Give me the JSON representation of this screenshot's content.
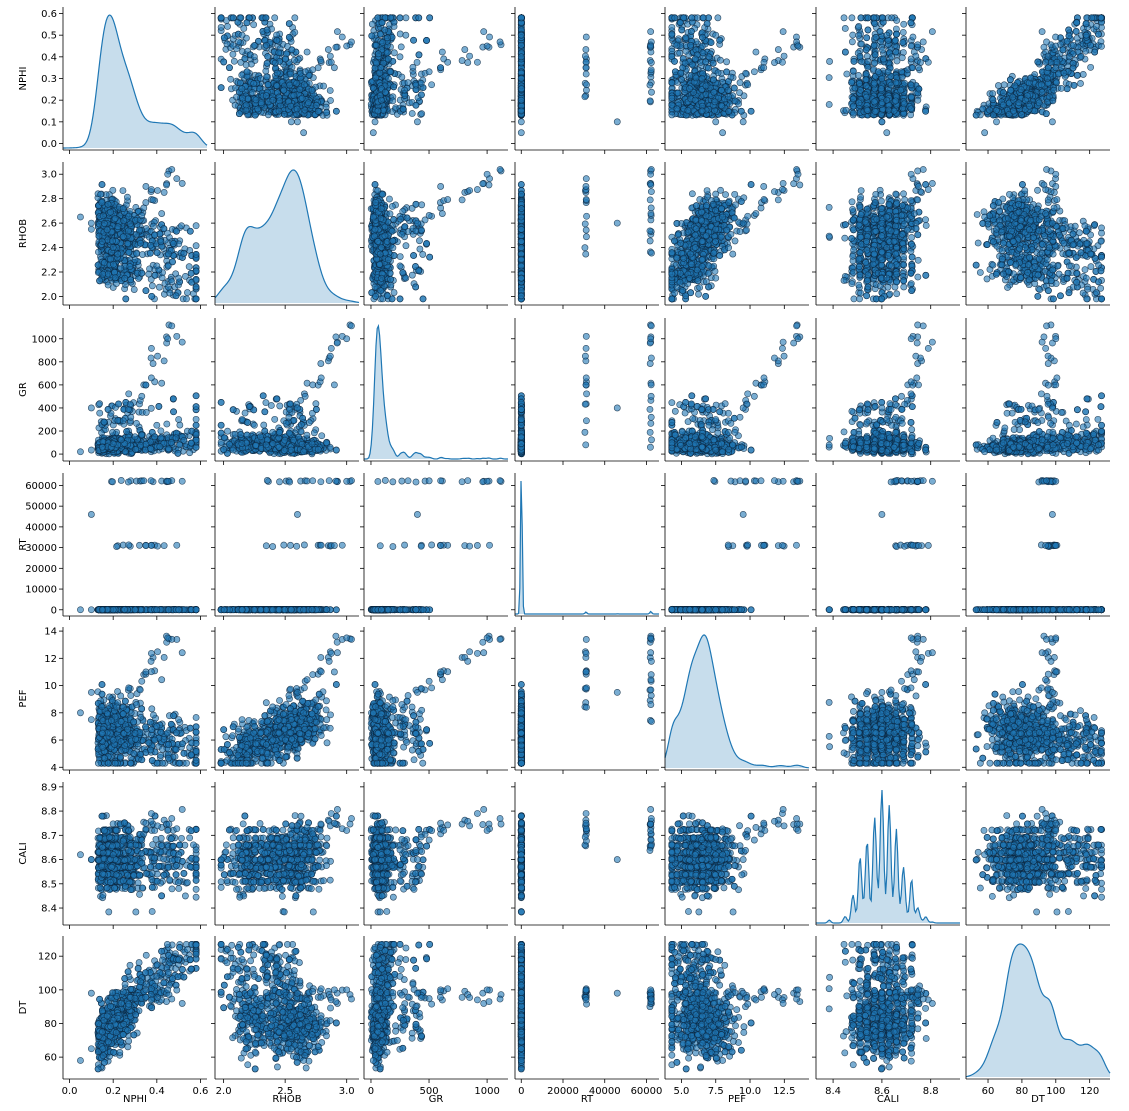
{
  "chart_data": {
    "type": "scatter",
    "kind": "pairplot",
    "diagonal": "kde",
    "grid": false,
    "point_color": "#1f77b4",
    "edge_color": "#0b2740",
    "variables": [
      "NPHI",
      "RHOB",
      "GR",
      "RT",
      "PEF",
      "CALI",
      "DT"
    ],
    "axes": {
      "NPHI": {
        "label": "NPHI",
        "range": [
          -0.03,
          0.63
        ],
        "ticks": [
          0.0,
          0.1,
          0.2,
          0.3,
          0.4,
          0.5,
          0.6
        ],
        "xticks": [
          0.0,
          0.2,
          0.4,
          0.6
        ],
        "xtick_labels": [
          "0.0",
          "0.2",
          "0.4",
          "0.6"
        ],
        "ytick_labels": [
          "0.0",
          "0.1",
          "0.2",
          "0.3",
          "0.4",
          "0.5",
          "0.6"
        ]
      },
      "RHOB": {
        "label": "RHOB",
        "range": [
          1.93,
          3.1
        ],
        "ticks": [
          2.0,
          2.2,
          2.4,
          2.6,
          2.8,
          3.0
        ],
        "xticks": [
          2.0,
          2.5,
          3.0
        ],
        "xtick_labels": [
          "2.0",
          "2.5",
          "3.0"
        ],
        "ytick_labels": [
          "2.0",
          "2.2",
          "2.4",
          "2.6",
          "2.8",
          "3.0"
        ]
      },
      "GR": {
        "label": "GR",
        "range": [
          -60,
          1180
        ],
        "ticks": [
          0,
          200,
          400,
          600,
          800,
          1000
        ],
        "xticks": [
          0,
          500,
          1000
        ],
        "xtick_labels": [
          "0",
          "500",
          "1000"
        ],
        "ytick_labels": [
          "0",
          "200",
          "400",
          "600",
          "800",
          "1000"
        ]
      },
      "RT": {
        "label": "RT",
        "range": [
          -3000,
          66000
        ],
        "ticks": [
          0,
          10000,
          20000,
          30000,
          40000,
          50000,
          60000
        ],
        "xticks": [
          0,
          20000,
          40000,
          60000
        ],
        "xtick_labels": [
          "0",
          "20000",
          "40000",
          "60000"
        ],
        "ytick_labels": [
          "0",
          "10000",
          "20000",
          "30000",
          "40000",
          "50000",
          "60000"
        ]
      },
      "PEF": {
        "label": "PEF",
        "range": [
          3.8,
          14.3
        ],
        "ticks": [
          4,
          6,
          8,
          10,
          12,
          14
        ],
        "xticks": [
          5.0,
          7.5,
          10.0,
          12.5
        ],
        "xtick_labels": [
          "5.0",
          "7.5",
          "10.0",
          "12.5"
        ],
        "ytick_labels": [
          "4",
          "6",
          "8",
          "10",
          "12",
          "14"
        ]
      },
      "CALI": {
        "label": "CALI",
        "range": [
          8.33,
          8.92
        ],
        "ticks": [
          8.4,
          8.5,
          8.6,
          8.7,
          8.8,
          8.9
        ],
        "xticks": [
          8.4,
          8.6,
          8.8
        ],
        "xtick_labels": [
          "8.4",
          "8.6",
          "8.8"
        ],
        "ytick_labels": [
          "8.4",
          "8.5",
          "8.6",
          "8.7",
          "8.8",
          "8.9"
        ]
      },
      "DT": {
        "label": "DT",
        "range": [
          47,
          132
        ],
        "ticks": [
          60,
          80,
          100,
          120
        ],
        "xticks": [
          60,
          80,
          100,
          120
        ],
        "xtick_labels": [
          "60",
          "80",
          "100",
          "120"
        ],
        "ytick_labels": [
          "60",
          "80",
          "100",
          "120"
        ]
      }
    },
    "kde_peaks": {
      "NPHI": [
        0.12,
        0.22,
        0.44
      ],
      "RHOB": [
        2.25,
        2.58
      ],
      "GR": [
        30
      ],
      "RT": [
        10
      ],
      "PEF": [
        5.0,
        6.5,
        7.7,
        8.2
      ],
      "CALI": [
        8.56,
        8.6,
        8.63,
        8.66,
        8.69
      ],
      "DT": [
        70,
        88,
        102,
        120
      ]
    },
    "sample_points": [
      {
        "NPHI": 0.05,
        "RHOB": 2.65,
        "GR": 20,
        "RT": 15,
        "PEF": 8.0,
        "CALI": 8.62,
        "DT": 58
      },
      {
        "NPHI": 0.1,
        "RHOB": 2.55,
        "GR": 35,
        "RT": 25,
        "PEF": 7.5,
        "CALI": 8.6,
        "DT": 65
      },
      {
        "NPHI": 0.15,
        "RHOB": 2.45,
        "GR": 60,
        "RT": 10,
        "PEF": 6.5,
        "CALI": 8.65,
        "DT": 75
      },
      {
        "NPHI": 0.2,
        "RHOB": 2.4,
        "GR": 90,
        "RT": 8,
        "PEF": 6.0,
        "CALI": 8.62,
        "DT": 82
      },
      {
        "NPHI": 0.3,
        "RHOB": 2.3,
        "GR": 150,
        "RT": 5,
        "PEF": 6.5,
        "CALI": 8.6,
        "DT": 95
      },
      {
        "NPHI": 0.4,
        "RHOB": 2.25,
        "GR": 250,
        "RT": 4,
        "PEF": 7.0,
        "CALI": 8.64,
        "DT": 108
      },
      {
        "NPHI": 0.5,
        "RHOB": 2.15,
        "GR": 300,
        "RT": 3,
        "PEF": 7.5,
        "CALI": 8.62,
        "DT": 118
      },
      {
        "NPHI": 0.35,
        "RHOB": 2.9,
        "GR": 600,
        "RT": 31000,
        "PEF": 11.0,
        "CALI": 8.75,
        "DT": 100
      },
      {
        "NPHI": 0.45,
        "RHOB": 3.0,
        "GR": 1000,
        "RT": 62000,
        "PEF": 13.5,
        "CALI": 8.72,
        "DT": 100
      },
      {
        "NPHI": 0.1,
        "RHOB": 2.6,
        "GR": 400,
        "RT": 46000,
        "PEF": 9.5,
        "CALI": 8.6,
        "DT": 98
      }
    ]
  }
}
